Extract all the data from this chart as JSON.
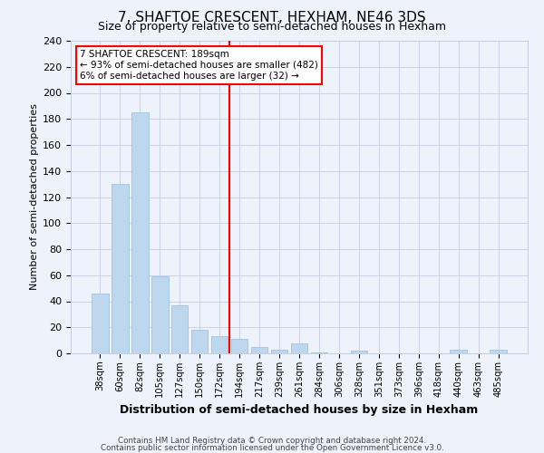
{
  "title": "7, SHAFTOE CRESCENT, HEXHAM, NE46 3DS",
  "subtitle": "Size of property relative to semi-detached houses in Hexham",
  "xlabel": "Distribution of semi-detached houses by size in Hexham",
  "ylabel": "Number of semi-detached properties",
  "bar_labels": [
    "38sqm",
    "60sqm",
    "82sqm",
    "105sqm",
    "127sqm",
    "150sqm",
    "172sqm",
    "194sqm",
    "217sqm",
    "239sqm",
    "261sqm",
    "284sqm",
    "306sqm",
    "328sqm",
    "351sqm",
    "373sqm",
    "396sqm",
    "418sqm",
    "440sqm",
    "463sqm",
    "485sqm"
  ],
  "bar_values": [
    46,
    130,
    185,
    59,
    37,
    18,
    13,
    11,
    5,
    3,
    8,
    1,
    0,
    2,
    0,
    0,
    0,
    0,
    3,
    0,
    3
  ],
  "bar_color": "#bdd7ee",
  "bar_edge_color": "#9ec4e0",
  "vline_index": 7,
  "vline_color": "red",
  "annotation_title": "7 SHAFTOE CRESCENT: 189sqm",
  "annotation_line1": "← 93% of semi-detached houses are smaller (482)",
  "annotation_line2": "6% of semi-detached houses are larger (32) →",
  "annotation_box_facecolor": "white",
  "annotation_box_edgecolor": "red",
  "ylim": [
    0,
    240
  ],
  "yticks": [
    0,
    20,
    40,
    60,
    80,
    100,
    120,
    140,
    160,
    180,
    200,
    220,
    240
  ],
  "footer1": "Contains HM Land Registry data © Crown copyright and database right 2024.",
  "footer2": "Contains public sector information licensed under the Open Government Licence v3.0.",
  "bg_color": "#eef2fa",
  "grid_color": "#c5cde0"
}
